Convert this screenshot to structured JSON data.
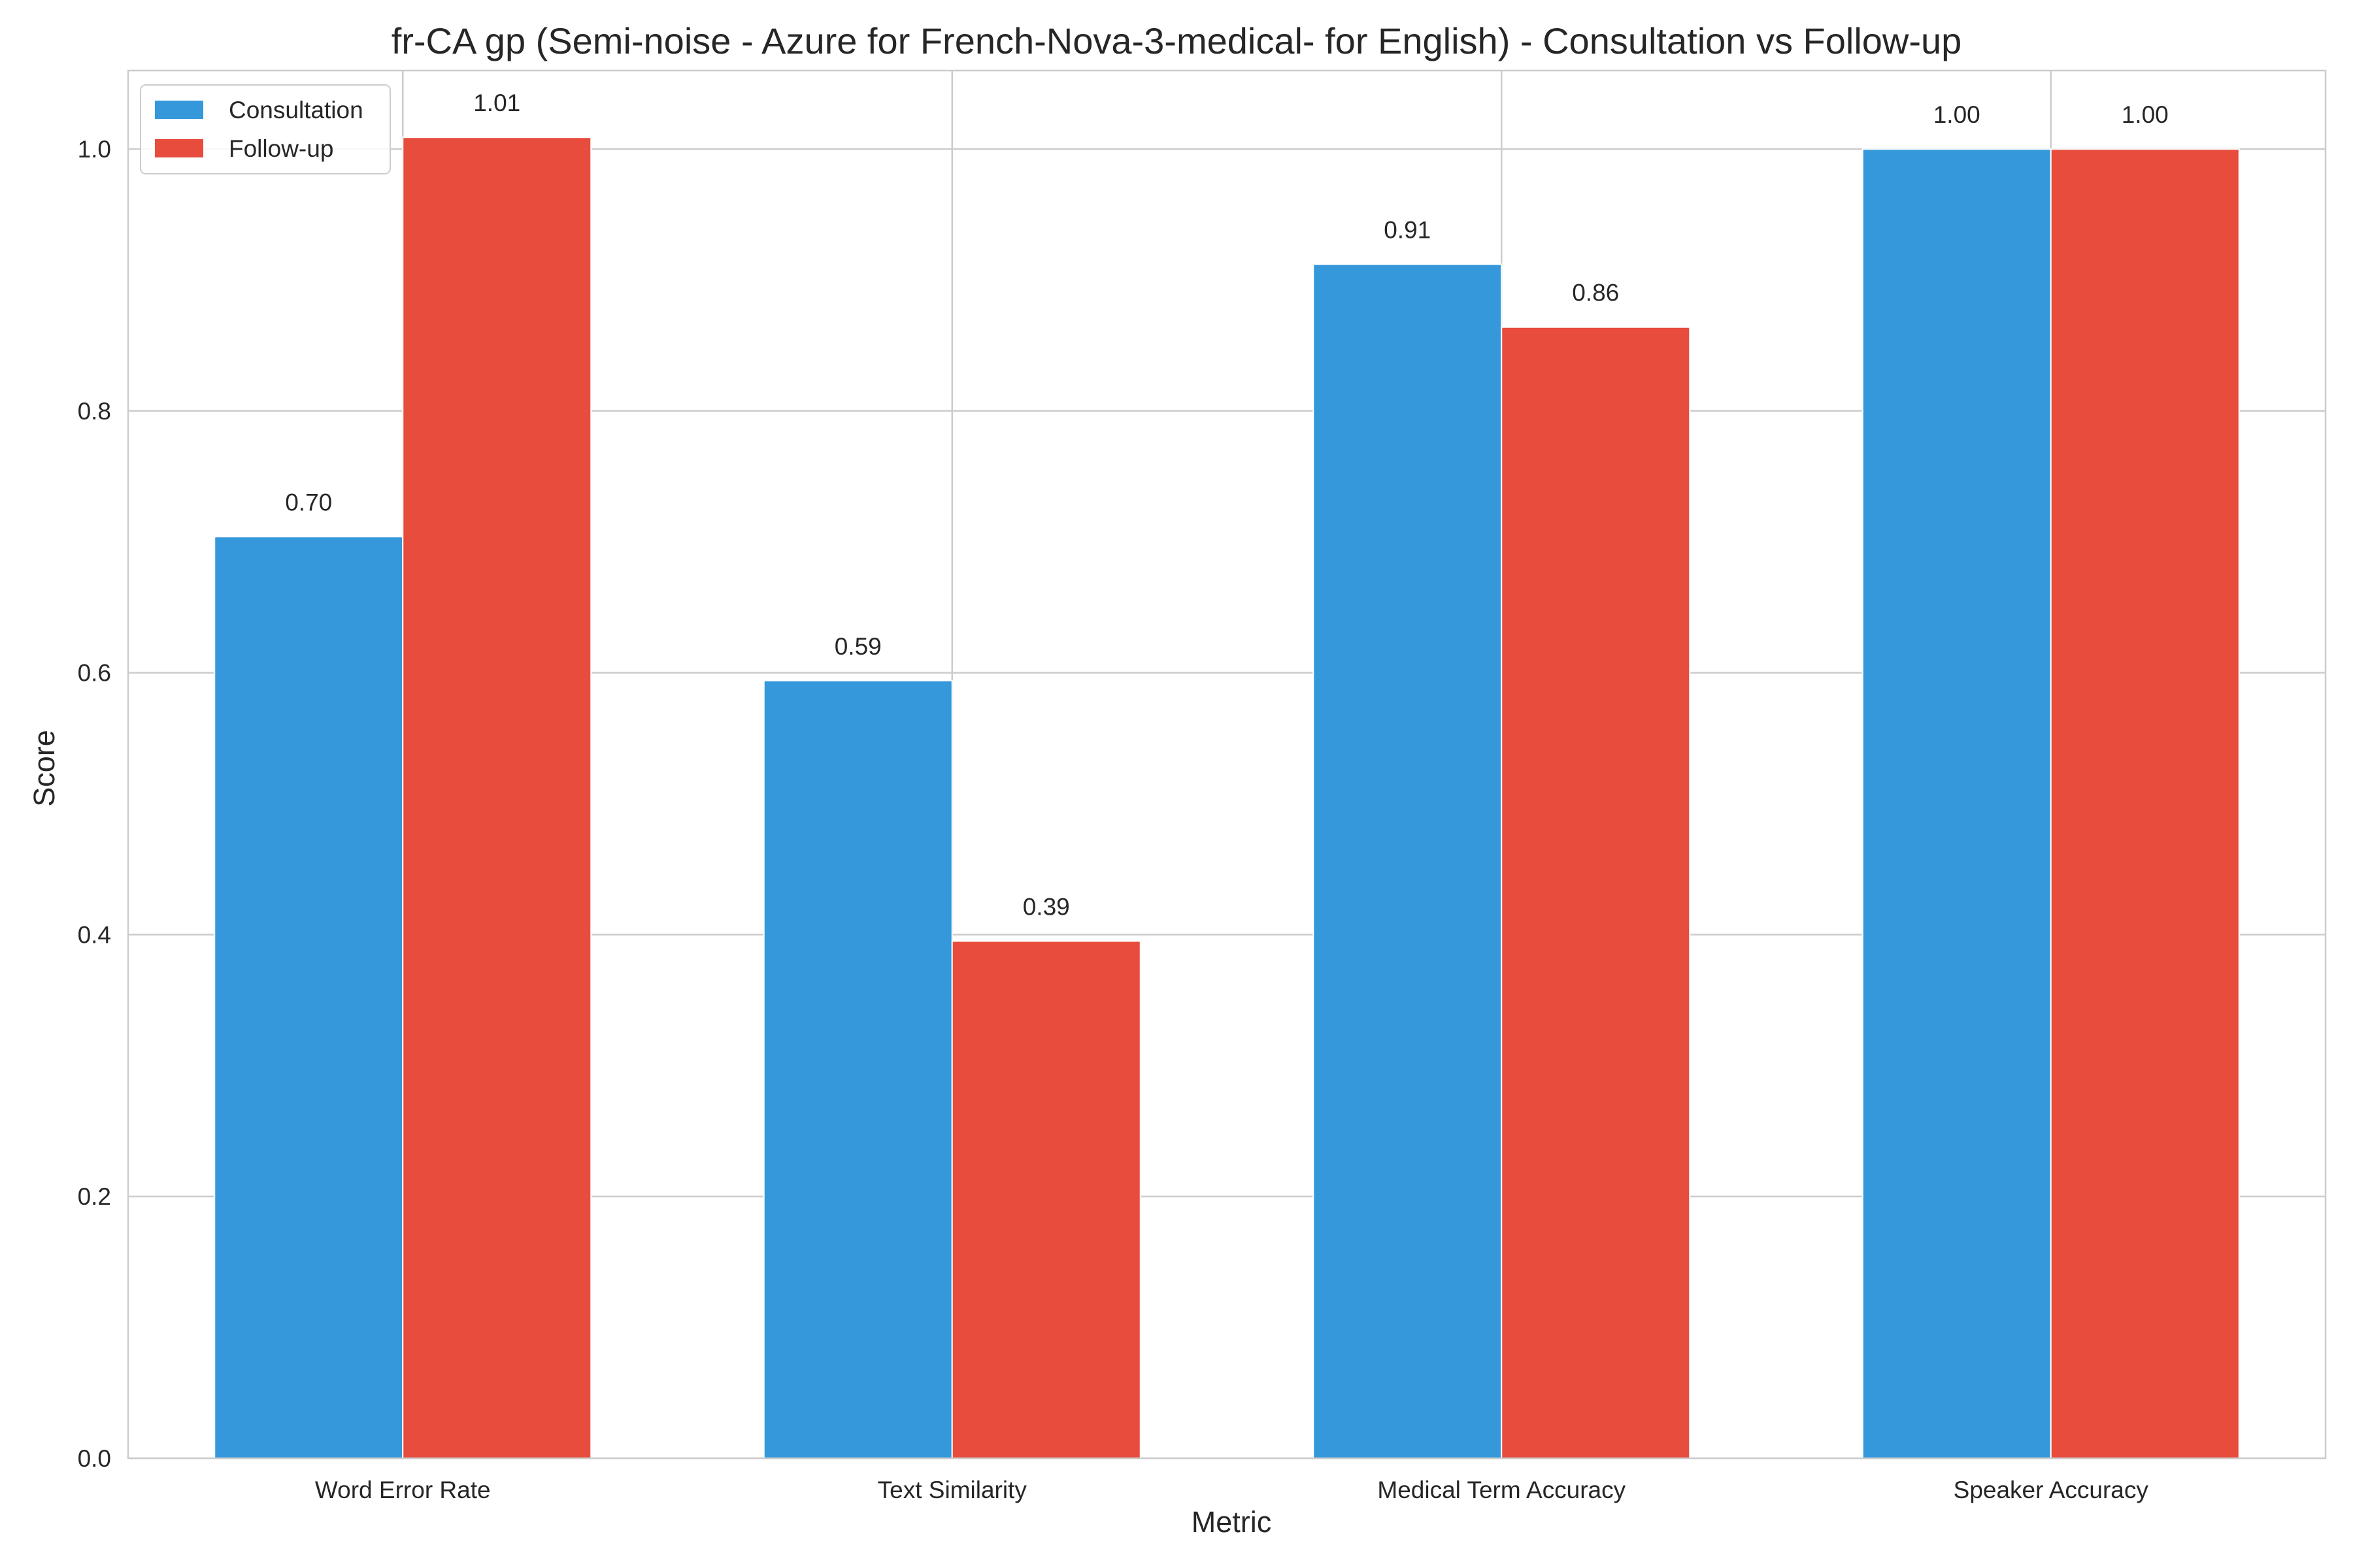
{
  "chart_data": {
    "type": "bar",
    "title": "fr-CA gp (Semi-noise - Azure for French-Nova-3-medical- for English) - Consultation vs Follow-up",
    "xlabel": "Metric",
    "ylabel": "Score",
    "categories": [
      "Word Error Rate",
      "Text Similarity",
      "Medical Term Accuracy",
      "Speaker Accuracy"
    ],
    "series": [
      {
        "name": "Consultation",
        "color": "#3498db",
        "values": [
          0.704,
          0.594,
          0.912,
          1.0
        ],
        "labels": [
          "0.70",
          "0.59",
          "0.91",
          "1.00"
        ]
      },
      {
        "name": "Follow-up",
        "color": "#e74c3c",
        "values": [
          1.009,
          0.395,
          0.864,
          1.0
        ],
        "labels": [
          "1.01",
          "0.39",
          "0.86",
          "1.00"
        ]
      }
    ],
    "ylim": [
      0,
      1.06
    ],
    "yticks": [
      "0.0",
      "0.2",
      "0.4",
      "0.6",
      "0.8",
      "1.0"
    ],
    "grid": true,
    "legend_position": "top-left"
  }
}
